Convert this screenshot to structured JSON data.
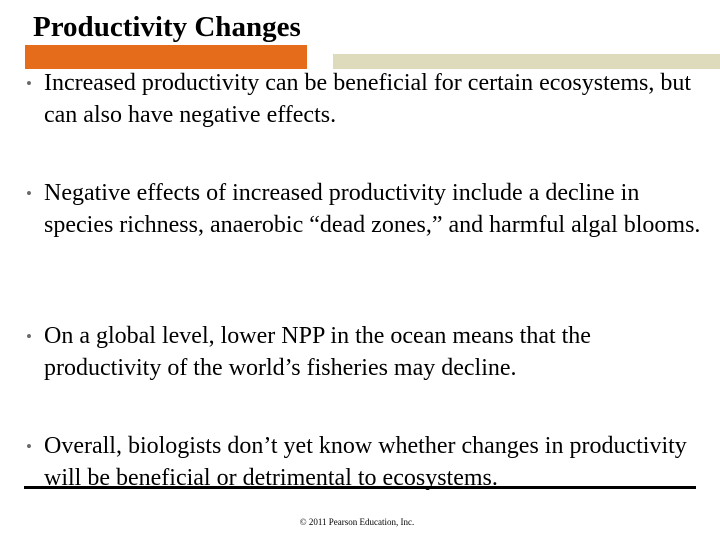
{
  "slide": {
    "title": "Productivity Changes",
    "colors": {
      "title_bar": "#e56c1a",
      "rule_bar": "#dedbbd",
      "text": "#000000",
      "bullet": "#6b6b6b"
    },
    "bullet_glyph": "•",
    "bullets": [
      "Increased productivity can be beneficial for certain ecosystems, but can also have negative effects.",
      "Negative effects of increased productivity include a decline in species richness, anaerobic “dead zones,” and harmful algal blooms.",
      "On a global level, lower NPP in the ocean means that the productivity of the world’s fisheries may decline.",
      "Overall, biologists don’t yet know whether changes in productivity will be beneficial or detrimental to ecosystems."
    ],
    "footer": "© 2011 Pearson Education, Inc."
  }
}
